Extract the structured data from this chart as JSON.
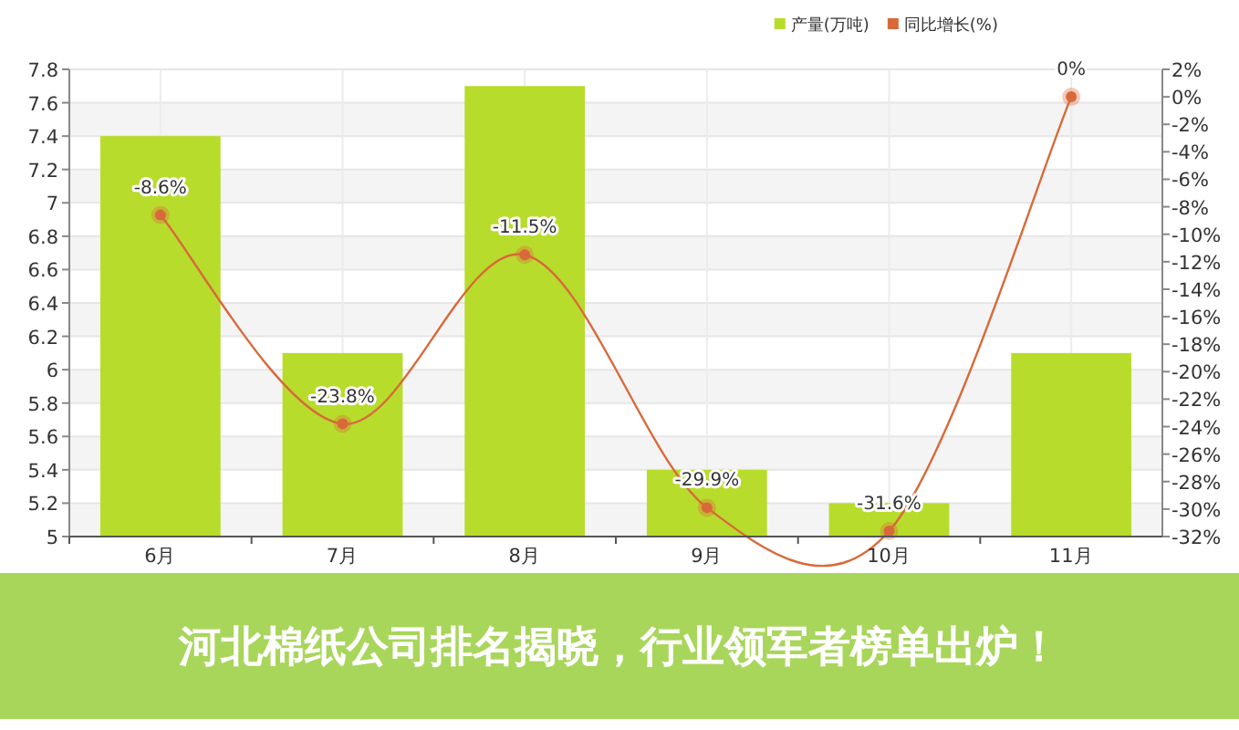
{
  "chart_data": {
    "type": "bar",
    "title": "河北棉纸公司排名揭晓，行业领军者榜单出炉！",
    "categories": [
      "6月",
      "7月",
      "8月",
      "9月",
      "10月",
      "11月"
    ],
    "series": [
      {
        "name": "产量(万吨)",
        "color": "#b8dc2c",
        "values": [
          7.4,
          6.1,
          7.7,
          5.4,
          5.2,
          6.1
        ]
      },
      {
        "name": "同比增长(%)",
        "type": "line",
        "axis": "y2",
        "color": "#d9693a",
        "values": [
          -8.6,
          -23.8,
          -11.5,
          -29.9,
          -31.6,
          0
        ],
        "value_labels": [
          "-8.6%",
          "-23.8%",
          "-11.5%",
          "-29.9%",
          "-31.6%",
          "0%"
        ]
      }
    ],
    "ylim": [
      5,
      7.8
    ],
    "yticks": [
      5,
      5.2,
      5.4,
      5.6,
      5.8,
      6,
      6.2,
      6.4,
      6.6,
      6.8,
      7,
      7.2,
      7.4,
      7.6,
      7.8
    ],
    "y2lim": [
      -32,
      2
    ],
    "y2ticks": [
      {
        "value": -32,
        "label": "-32%"
      },
      {
        "value": -30,
        "label": "-30%"
      },
      {
        "value": -28,
        "label": "-28%"
      },
      {
        "value": -26,
        "label": "-26%"
      },
      {
        "value": -24,
        "label": "-24%"
      },
      {
        "value": -22,
        "label": "-22%"
      },
      {
        "value": -20,
        "label": "-20%"
      },
      {
        "value": -18,
        "label": "-18%"
      },
      {
        "value": -16,
        "label": "-16%"
      },
      {
        "value": -14,
        "label": "-14%"
      },
      {
        "value": -12,
        "label": "-12%"
      },
      {
        "value": -10,
        "label": "-10%"
      },
      {
        "value": -8,
        "label": "-8%"
      },
      {
        "value": -6,
        "label": "-6%"
      },
      {
        "value": -4,
        "label": "-4%"
      },
      {
        "value": -2,
        "label": "-2%"
      },
      {
        "value": 0,
        "label": "0%"
      },
      {
        "value": 2,
        "label": "2%"
      }
    ],
    "grid": true,
    "legend": "top right",
    "marker": "circle"
  }
}
